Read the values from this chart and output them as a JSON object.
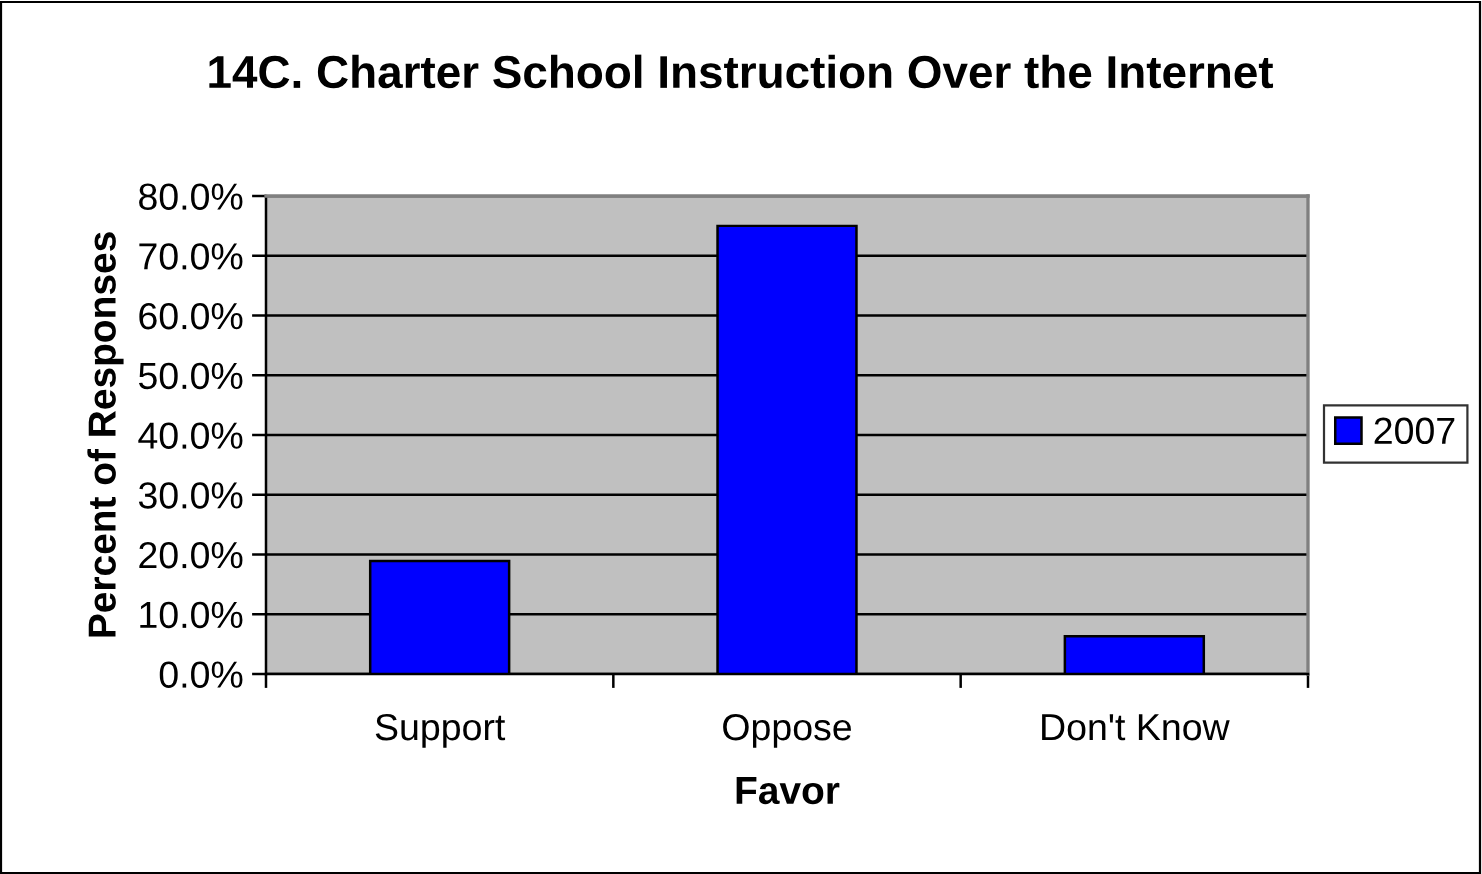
{
  "chart_data": {
    "type": "bar",
    "title": "14C. Charter School Instruction Over the Internet",
    "xlabel": "Favor",
    "ylabel": "Percent of Responses",
    "categories": [
      "Support",
      "Oppose",
      "Don't Know"
    ],
    "series": [
      {
        "name": "2007",
        "color": "#0000ff",
        "values": [
          18.9,
          75.0,
          6.3
        ]
      }
    ],
    "ylim": [
      0,
      80
    ],
    "yticks": [
      {
        "value": 0,
        "label": "0.0%"
      },
      {
        "value": 10,
        "label": "10.0%"
      },
      {
        "value": 20,
        "label": "20.0%"
      },
      {
        "value": 30,
        "label": "30.0%"
      },
      {
        "value": 40,
        "label": "40.0%"
      },
      {
        "value": 50,
        "label": "50.0%"
      },
      {
        "value": 60,
        "label": "60.0%"
      },
      {
        "value": 70,
        "label": "70.0%"
      },
      {
        "value": 80,
        "label": "80.0%"
      }
    ],
    "grid": "y",
    "legend": "right"
  }
}
